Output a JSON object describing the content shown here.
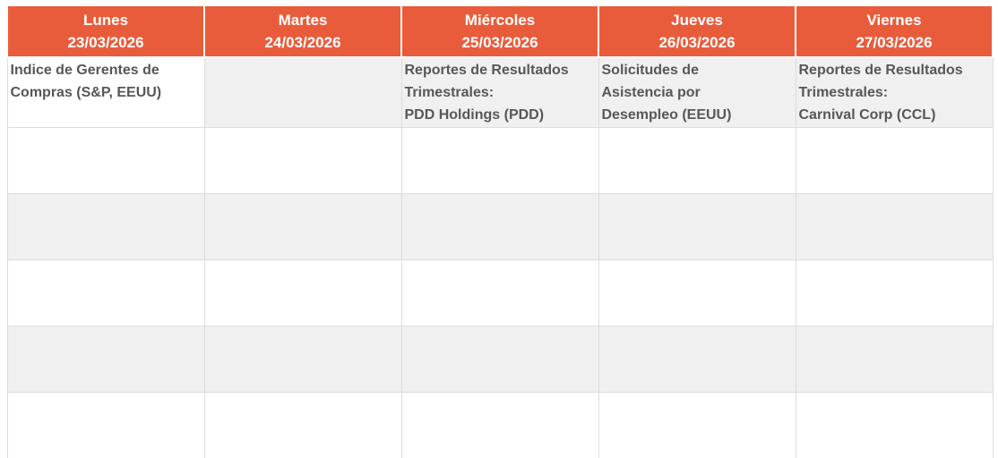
{
  "calendar": {
    "header_bg": "#E95C3B",
    "header_text_color": "#ffffff",
    "stripe_color": "#F0F0F0",
    "border_color": "#dcdcdc",
    "event_text_color": "#575757",
    "days": [
      {
        "name": "Lunes",
        "date": "23/03/2026",
        "event_lines": [
          "Indice de Gerentes de",
          "Compras (S&P, EEUU)"
        ]
      },
      {
        "name": "Martes",
        "date": "24/03/2026",
        "event_lines": []
      },
      {
        "name": "Miércoles",
        "date": "25/03/2026",
        "event_lines": [
          "Reportes de Resultados",
          "Trimestrales:",
          "PDD Holdings (PDD)"
        ]
      },
      {
        "name": "Jueves",
        "date": "26/03/2026",
        "event_lines": [
          "Solicitudes de",
          "Asistencia por",
          "Desempleo (EEUU)"
        ]
      },
      {
        "name": "Viernes",
        "date": "27/03/2026",
        "event_lines": [
          "Reportes de Resultados",
          "Trimestrales:",
          "Carnival Corp (CCL)"
        ]
      }
    ],
    "empty_row_count": 5
  }
}
